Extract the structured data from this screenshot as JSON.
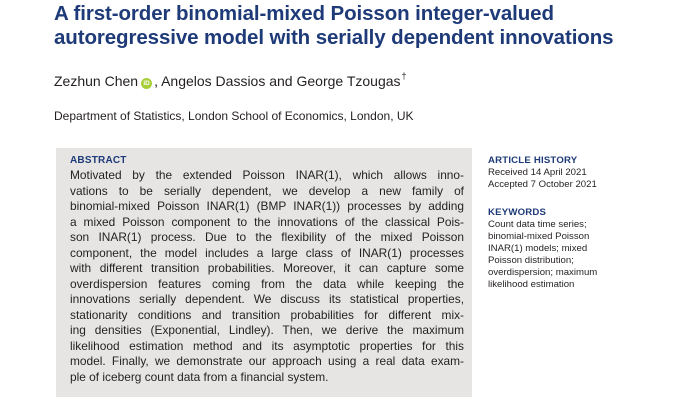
{
  "paper": {
    "title_lines": [
      "A first-order binomial-mixed Poisson integer-valued",
      "autoregressive model with serially dependent innovations"
    ],
    "authors_first": "Zezhun Chen",
    "orcid_label": "iD",
    "authors_rest": ", Angelos Dassios and George Tzougas",
    "dagger": "†",
    "affiliation": "Department of Statistics, London School of Economics, London, UK"
  },
  "abstract": {
    "heading": "ABSTRACT",
    "lines": [
      "Motivated by the extended Poisson INAR(1), which allows inno-",
      "vations to be serially dependent, we develop a new family of",
      "binomial-mixed Poisson INAR(1) (BMP INAR(1)) processes by adding",
      "a mixed Poisson component to the innovations of the classical Pois-",
      "son INAR(1) process. Due to the flexibility of the mixed Poisson",
      "component, the model includes a large class of INAR(1) processes",
      "with different transition probabilities. Moreover, it can capture some",
      "overdispersion features coming from the data while keeping the",
      "innovations serially dependent. We discuss its statistical properties,",
      "stationarity conditions and transition probabilities for different mix-",
      "ing densities (Exponential, Lindley). Then, we derive the maximum",
      "likelihood estimation method and its asymptotic properties for this",
      "model. Finally, we demonstrate our approach using a real data exam-",
      "ple of iceberg count data from a financial system."
    ]
  },
  "article_history": {
    "heading": "ARTICLE HISTORY",
    "received": "Received 14 April 2021",
    "accepted": "Accepted 7 October 2021"
  },
  "keywords": {
    "heading": "KEYWORDS",
    "lines": [
      "Count data time series;",
      "binomial-mixed Poisson",
      "INAR(1) models; mixed",
      "Poisson distribution;",
      "overdispersion; maximum",
      "likelihood estimation"
    ]
  },
  "colors": {
    "title": "#1e3a78",
    "abstract_box": "#e6e5e4",
    "orcid": "#a6ce39",
    "text": "#231f20"
  }
}
